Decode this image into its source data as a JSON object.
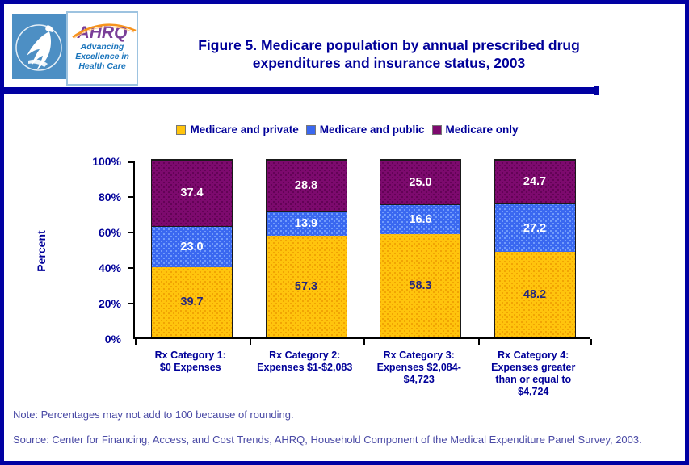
{
  "page": {
    "title": "Figure 5. Medicare population by annual prescribed drug expenditures and insurance status, 2003",
    "note": "Note: Percentages may not add to 100 because of rounding.",
    "source": "Source: Center for Financing, Access, and Cost Trends, AHRQ, Household Component of the Medical Expenditure Panel Survey, 2003."
  },
  "logos": {
    "hhs_seal": "hhs-eagle-seal",
    "ahrq_acronym": "AHRQ",
    "ahrq_tagline_line1": "Advancing",
    "ahrq_tagline_line2": "Excellence in",
    "ahrq_tagline_line3": "Health Care"
  },
  "colors": {
    "border_navy": "#0000A2",
    "title_navy": "#000099",
    "axis_black": "#000000",
    "footer_blue": "#4A4AA5",
    "hhs_logo_blue": "#4D8FC4",
    "ahrq_purple": "#7A3F98",
    "ahrq_blue": "#1B75BC",
    "ahrq_arc_orange": "#F7941D"
  },
  "chart_data": {
    "type": "bar",
    "stacked": true,
    "title": "Figure 5. Medicare population by annual prescribed drug expenditures and insurance status, 2003",
    "xlabel": "",
    "ylabel": "Percent",
    "ylim": [
      0,
      100
    ],
    "y_tick_labels": [
      "0%",
      "20%",
      "40%",
      "60%",
      "80%",
      "100%"
    ],
    "y_tick_values": [
      0,
      20,
      40,
      60,
      80,
      100
    ],
    "grid": false,
    "legend_position": "top",
    "categories": [
      "Rx Category 1:\n$0 Expenses",
      "Rx Category 2:\nExpenses $1-$2,083",
      "Rx Category 3:\nExpenses $2,084-\n$4,723",
      "Rx Category 4:\nExpenses greater\nthan or equal to\n$4,724"
    ],
    "series": [
      {
        "name": "Medicare and private",
        "values": [
          39.7,
          57.3,
          58.3,
          48.2
        ],
        "color": "#FFC40D",
        "dot_color": "#EC9A00",
        "value_label_color": "#26277D"
      },
      {
        "name": "Medicare and public",
        "values": [
          23.0,
          13.9,
          16.6,
          27.2
        ],
        "color": "#3A68F0",
        "dot_color": "#84AEFF",
        "value_label_color": "#FFFFFF"
      },
      {
        "name": "Medicare only",
        "values": [
          37.4,
          28.8,
          25.0,
          24.7
        ],
        "color": "#7D0A6E",
        "dot_color": "#5A014E",
        "value_label_color": "#FFFFFF"
      }
    ]
  }
}
